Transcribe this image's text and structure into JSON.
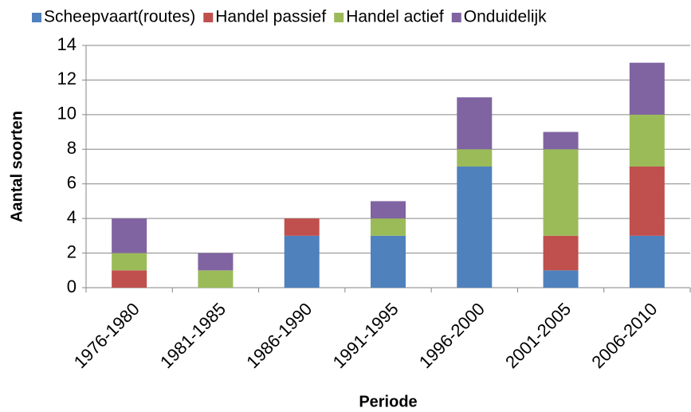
{
  "chart_data": {
    "type": "stacked_bar",
    "x_label": "Periode",
    "y_label": "Aantal soorten",
    "categories": [
      "1976-1980",
      "1981-1985",
      "1986-1990",
      "1991-1995",
      "1996-2000",
      "2001-2005",
      "2006-2010"
    ],
    "series": [
      {
        "name": "Scheepvaart(routes)",
        "color": "#4f81bd",
        "values": [
          0,
          0,
          3,
          3,
          7,
          1,
          3
        ]
      },
      {
        "name": "Handel passief",
        "color": "#c0504d",
        "values": [
          1,
          0,
          1,
          0,
          0,
          2,
          4
        ]
      },
      {
        "name": "Handel actief",
        "color": "#9bbb59",
        "values": [
          1,
          1,
          0,
          1,
          1,
          5,
          3
        ]
      },
      {
        "name": "Onduidelijk",
        "color": "#8064a2",
        "values": [
          2,
          1,
          0,
          1,
          3,
          1,
          3
        ]
      }
    ],
    "ylim": [
      0,
      14
    ],
    "yticks": [
      0,
      2,
      4,
      6,
      8,
      10,
      12,
      14
    ],
    "grid": true,
    "legend": "top"
  }
}
